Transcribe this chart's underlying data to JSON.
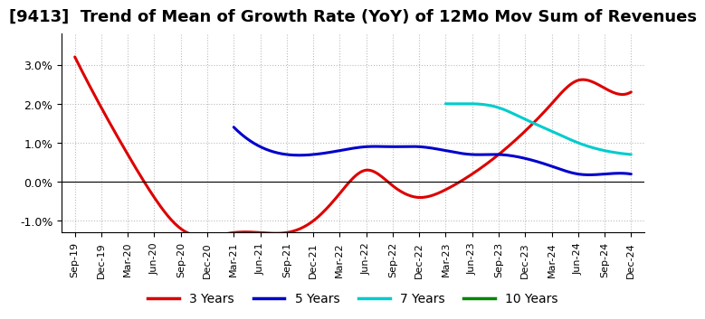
{
  "title": "[9413]  Trend of Mean of Growth Rate (YoY) of 12Mo Mov Sum of Revenues",
  "title_fontsize": 13,
  "background_color": "#ffffff",
  "grid_color": "#aaaaaa",
  "ylim": [
    -0.013,
    0.038
  ],
  "yticks": [
    -0.01,
    0.0,
    0.01,
    0.02,
    0.03
  ],
  "xtick_labels": [
    "Sep-19",
    "Dec-19",
    "Mar-20",
    "Jun-20",
    "Sep-20",
    "Dec-20",
    "Mar-21",
    "Jun-21",
    "Sep-21",
    "Dec-21",
    "Mar-22",
    "Jun-22",
    "Sep-22",
    "Dec-22",
    "Mar-23",
    "Jun-23",
    "Sep-23",
    "Dec-23",
    "Mar-24",
    "Jun-24",
    "Sep-24",
    "Dec-24"
  ],
  "series": {
    "3 Years": {
      "color": "#dd0000",
      "x_indices": [
        0,
        1,
        2,
        3,
        4,
        5,
        6,
        7,
        8,
        9,
        10,
        11,
        12,
        13,
        14,
        15,
        16,
        17,
        18,
        19,
        20,
        21
      ],
      "y": [
        0.032,
        0.019,
        0.007,
        -0.004,
        -0.012,
        -0.014,
        -0.013,
        -0.013,
        -0.013,
        -0.01,
        -0.003,
        0.003,
        -0.001,
        -0.004,
        -0.002,
        0.002,
        0.007,
        0.013,
        0.02,
        0.026,
        0.024,
        0.023
      ]
    },
    "5 Years": {
      "color": "#0000cc",
      "x_indices": [
        6,
        7,
        8,
        9,
        10,
        11,
        12,
        13,
        14,
        15,
        16,
        17,
        18,
        19,
        20,
        21
      ],
      "y": [
        0.014,
        0.009,
        0.007,
        0.007,
        0.008,
        0.009,
        0.009,
        0.009,
        0.008,
        0.007,
        0.007,
        0.006,
        0.004,
        0.002,
        0.002,
        0.002
      ]
    },
    "7 Years": {
      "color": "#00cccc",
      "x_indices": [
        14,
        15,
        16,
        17,
        18,
        19,
        20,
        21
      ],
      "y": [
        0.02,
        0.02,
        0.019,
        0.016,
        0.013,
        0.01,
        0.008,
        0.007
      ]
    },
    "10 Years": {
      "color": "#008800",
      "x_indices": [],
      "y": []
    }
  },
  "legend_labels": [
    "3 Years",
    "5 Years",
    "7 Years",
    "10 Years"
  ],
  "legend_colors": [
    "#dd0000",
    "#0000cc",
    "#00cccc",
    "#008800"
  ]
}
